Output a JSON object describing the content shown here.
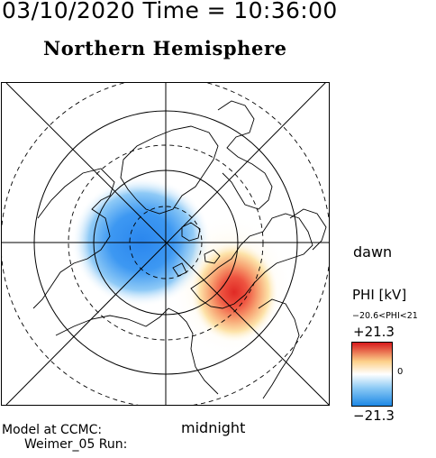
{
  "header": {
    "datetime": "03/10/2020 Time = 10:36:00",
    "title": "Northern Hemisphere"
  },
  "map": {
    "projection": "polar stereographic, north pole centred",
    "orientation": {
      "right": "dawn",
      "bottom": "midnight"
    },
    "latitude_circles_solid": [
      "outer",
      "inner"
    ],
    "latitude_circles_dashed": [
      "outer",
      "middle",
      "inner"
    ],
    "potential_cells": [
      {
        "polarity": "negative",
        "color": "#2f8ff0",
        "location": "dusk/noon side"
      },
      {
        "polarity": "positive",
        "color": "#e83028",
        "location": "dawn/midnight side"
      }
    ]
  },
  "labels": {
    "dawn": "dawn",
    "midnight": "midnight"
  },
  "footer": {
    "model_line1": "Model at CCMC:",
    "model_line2": "Weimer_05 Run:"
  },
  "colorbar": {
    "quantity_label": "PHI [kV]",
    "range_text": "−20.6<PHI<21",
    "max_label": "+21.3",
    "zero_label": "0",
    "min_label": "−21.3",
    "colors": {
      "max": "#d7191c",
      "mid_high": "#fdd18a",
      "zero": "#ffffff",
      "mid_low": "#8ccaf5",
      "min": "#1e88e5"
    }
  }
}
